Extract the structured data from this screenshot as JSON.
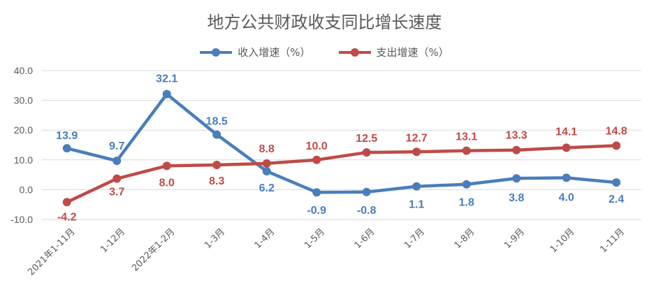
{
  "chart_data": {
    "type": "line",
    "title": "地方公共财政收支同比增长速度",
    "categories": [
      "2021年1-11月",
      "1-12月",
      "2022年1-2月",
      "1-3月",
      "1-4月",
      "1-5月",
      "1-6月",
      "1-7月",
      "1-8月",
      "1-9月",
      "1-10月",
      "1-11月"
    ],
    "series": [
      {
        "name": "收入增速（%）",
        "color": "#4a7ebb",
        "values": [
          13.9,
          9.7,
          32.1,
          18.5,
          6.2,
          -0.9,
          -0.8,
          1.1,
          1.8,
          3.8,
          4.0,
          2.4
        ]
      },
      {
        "name": "支出增速（%）",
        "color": "#be4b48",
        "values": [
          -4.2,
          3.7,
          8.0,
          8.3,
          8.8,
          10.0,
          12.5,
          12.7,
          13.1,
          13.3,
          14.1,
          14.8
        ]
      }
    ],
    "ylim": [
      -10,
      40
    ],
    "yticks": [
      "-10.0",
      "0.0",
      "10.0",
      "20.0",
      "30.0",
      "40.0"
    ],
    "grid": true,
    "legend_position": "top"
  }
}
